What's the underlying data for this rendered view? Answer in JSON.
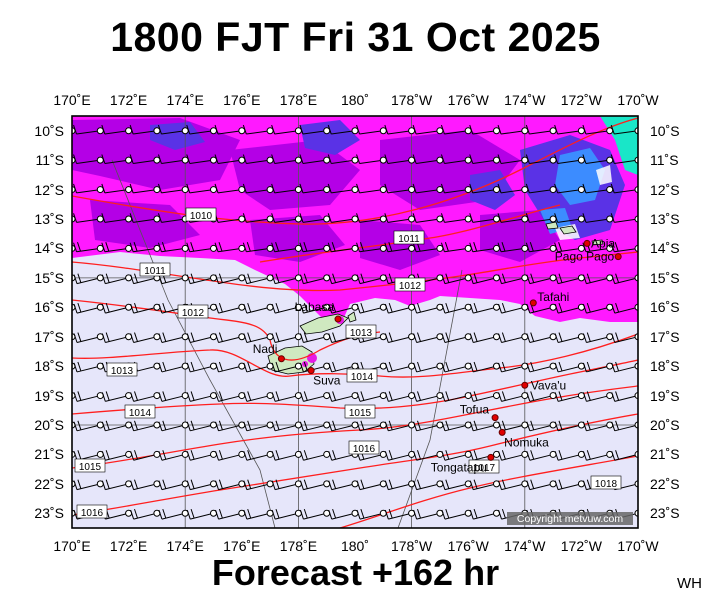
{
  "header": {
    "title": "1800 FJT Fri 31 Oct 2025"
  },
  "footer": {
    "forecast_label": "Forecast +162 hr",
    "initials": "WH"
  },
  "map": {
    "copyright": "Copyright metvuw.com",
    "lon_labels": [
      "170˚E",
      "172˚E",
      "174˚E",
      "176˚E",
      "178˚E",
      "180˚",
      "178˚W",
      "176˚W",
      "174˚W",
      "172˚W",
      "170˚W"
    ],
    "lat_labels": [
      "10˚S",
      "11˚S",
      "12˚S",
      "13˚S",
      "14˚S",
      "15˚S",
      "16˚S",
      "17˚S",
      "18˚S",
      "19˚S",
      "20˚S",
      "21˚S",
      "22˚S",
      "23˚S"
    ],
    "place_labels": [
      {
        "name": "Labasa",
        "lon": 179.4,
        "lat": -16.4
      },
      {
        "name": "Nadi",
        "lon": 177.4,
        "lat": -17.75
      },
      {
        "name": "Suva",
        "lon": 178.45,
        "lat": -18.15
      },
      {
        "name": "Vava'u",
        "lon": -174.0,
        "lat": -18.65
      },
      {
        "name": "Tofua",
        "lon": -175.05,
        "lat": -19.75
      },
      {
        "name": "Nomuka",
        "lon": -174.8,
        "lat": -20.25
      },
      {
        "name": "Tongatapu",
        "lon": -175.2,
        "lat": -21.1
      },
      {
        "name": "Tafahi",
        "lon": -173.7,
        "lat": -15.85
      },
      {
        "name": "Pago Pago",
        "lon": -170.7,
        "lat": -14.28
      },
      {
        "name": "Apia",
        "lon": -171.8,
        "lat": -13.83
      }
    ],
    "isobar_labels": [
      "1010",
      "1011",
      "1011",
      "1012",
      "1012",
      "1013",
      "1013",
      "1014",
      "1014",
      "1015",
      "1015",
      "1016",
      "1016",
      "1017",
      "1018"
    ]
  }
}
